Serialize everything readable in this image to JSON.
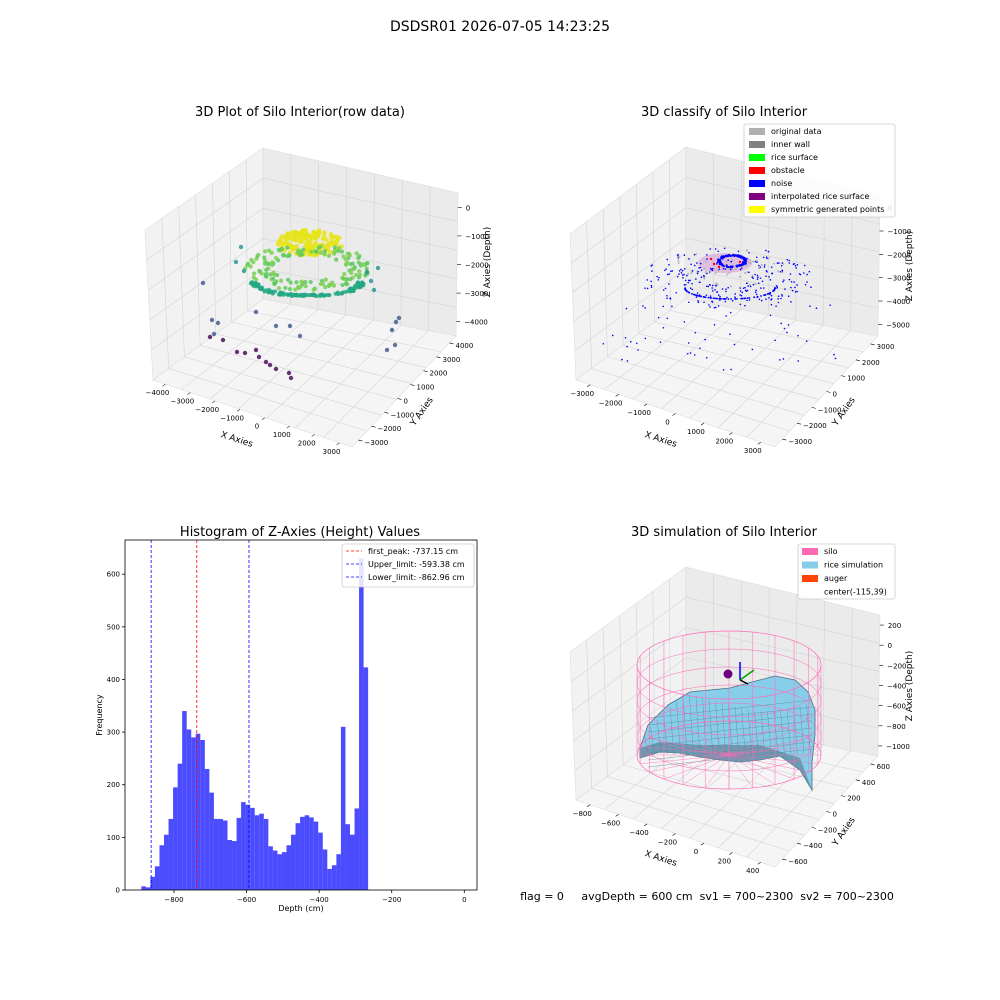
{
  "figure_title": "DSDSR01 2026-07-05 14:23:25",
  "status_line": "flag = 0     avgDepth = 600 cm  sv1 = 700~2300  sv2 = 700~2300",
  "chart_data": [
    {
      "type": "scatter",
      "title": "3D Plot of Silo Interior(row data)",
      "xlabel": "X Axies",
      "ylabel": "Y Axies",
      "zlabel": "Z Axies (Depth)",
      "xticks": [
        "−4000",
        "−3000",
        "−2000",
        "−1000",
        "0",
        "1000",
        "2000",
        "3000"
      ],
      "yticks": [
        "−3000",
        "−2000",
        "−1000",
        "0",
        "1000",
        "2000",
        "3000",
        "4000"
      ],
      "zticks": [
        "0",
        "−1000",
        "−2000",
        "−3000",
        "−4000"
      ],
      "colormap": "viridis",
      "grid": true
    },
    {
      "type": "scatter",
      "title": "3D classify of Silo Interior",
      "xlabel": "X Axies",
      "ylabel": "Y Axies",
      "zlabel": "Z Axies (Depth)",
      "xticks": [
        "−3000",
        "−2000",
        "−1000",
        "0",
        "1000",
        "2000",
        "3000"
      ],
      "yticks": [
        "−3000",
        "−2000",
        "−1000",
        "0",
        "1000",
        "2000",
        "3000"
      ],
      "zticks": [
        "0",
        "−1000",
        "−2000",
        "−3000",
        "−4000",
        "−5000"
      ],
      "legend_position": "top-right",
      "legend": [
        {
          "label": "original data",
          "color": "#b0b0b0"
        },
        {
          "label": "inner wall",
          "color": "#808080"
        },
        {
          "label": "rice surface",
          "color": "#00ff00"
        },
        {
          "label": "obstacle",
          "color": "#ff0000"
        },
        {
          "label": "noise",
          "color": "#0000ff"
        },
        {
          "label": "interpolated rice surface",
          "color": "#800080"
        },
        {
          "label": "symmetric generated points",
          "color": "#ffff00"
        }
      ],
      "grid": true
    },
    {
      "type": "bar",
      "title": "Histogram of Z-Axies (Height) Values",
      "xlabel": "Depth (cm)",
      "ylabel": "Frequency",
      "xlim": [
        -935,
        35
      ],
      "ylim": [
        0,
        665
      ],
      "xticks": [
        -800,
        -600,
        -400,
        -200,
        0
      ],
      "xtick_labels": [
        "−800",
        "−600",
        "−400",
        "−200",
        "0"
      ],
      "yticks": [
        0,
        100,
        200,
        300,
        400,
        500,
        600
      ],
      "bin_start": -890,
      "bin_width": 12.5,
      "values": [
        7,
        5,
        25,
        45,
        85,
        105,
        135,
        195,
        240,
        340,
        305,
        290,
        297,
        285,
        230,
        185,
        135,
        135,
        132,
        95,
        93,
        137,
        167,
        162,
        156,
        142,
        145,
        135,
        83,
        75,
        68,
        72,
        85,
        105,
        127,
        139,
        142,
        138,
        130,
        109,
        77,
        40,
        47,
        68,
        310,
        125,
        105,
        155,
        630,
        423
      ],
      "bar_color": "#0000ff",
      "lines": [
        {
          "label": "first_peak: -737.15 cm",
          "x": -737.15,
          "color": "#ff0000"
        },
        {
          "label": "Upper_limit: -593.38 cm",
          "x": -593.38,
          "color": "#0000ff"
        },
        {
          "label": "Lower_limit: -862.96 cm",
          "x": -862.96,
          "color": "#0000ff"
        }
      ],
      "legend_position": "top-right"
    },
    {
      "type": "surface",
      "title": "3D simulation of Silo Interior",
      "xlabel": "X Axies",
      "ylabel": "Y Axies",
      "zlabel": "Z Axies (Depth)",
      "xticks": [
        "−800",
        "−600",
        "−400",
        "−200",
        "0",
        "200",
        "400"
      ],
      "yticks": [
        "−600",
        "−400",
        "−200",
        "0",
        "200",
        "400",
        "600"
      ],
      "zticks": [
        "200",
        "0",
        "−200",
        "−400",
        "−600",
        "−800",
        "−1000"
      ],
      "legend_position": "top-right",
      "legend": [
        {
          "label": "silo",
          "color": "#ff69b4"
        },
        {
          "label": "rice simulation",
          "color": "#87ceeb"
        },
        {
          "label": "auger",
          "color": "#ff4500"
        },
        {
          "label": "center(-115,39)",
          "color": null
        }
      ],
      "grid": true
    }
  ]
}
